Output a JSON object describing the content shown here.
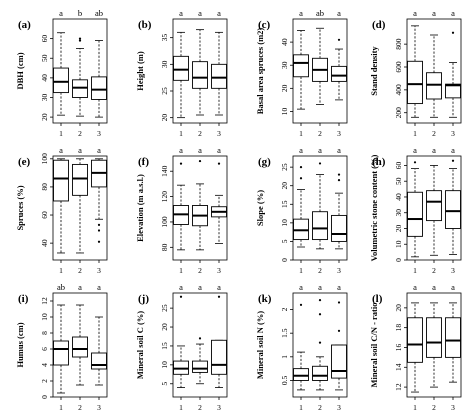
{
  "chart_data": [
    {
      "type": "boxplot",
      "panel_label": "(a)",
      "ylabel": "DBH (cm)",
      "categories": [
        "1",
        "2",
        "3"
      ],
      "significance": [
        "a",
        "b",
        "ab"
      ],
      "yticks": [
        20,
        30,
        40,
        50,
        60
      ],
      "ylim": [
        17,
        70
      ],
      "boxes": [
        {
          "whisker_low": 21,
          "q1": 32.5,
          "median": 38,
          "q3": 45,
          "whisker_high": 63,
          "outliers": []
        },
        {
          "whisker_low": 20.5,
          "q1": 30,
          "median": 35,
          "q3": 39,
          "whisker_high": 55,
          "outliers": [
            59,
            60
          ]
        },
        {
          "whisker_low": 20,
          "q1": 29,
          "median": 34,
          "q3": 40.5,
          "whisker_high": 59,
          "outliers": []
        }
      ]
    },
    {
      "type": "boxplot",
      "panel_label": "(b)",
      "ylabel": "Height (m)",
      "categories": [
        "1",
        "2",
        "3"
      ],
      "significance": [
        "a",
        "a",
        "a"
      ],
      "yticks": [
        20,
        25,
        30,
        35
      ],
      "ylim": [
        19,
        38.5
      ],
      "boxes": [
        {
          "whisker_low": 20,
          "q1": 27,
          "median": 29,
          "q3": 31.5,
          "whisker_high": 36,
          "outliers": []
        },
        {
          "whisker_low": 20.5,
          "q1": 25.5,
          "median": 27.5,
          "q3": 30.5,
          "whisker_high": 36.5,
          "outliers": []
        },
        {
          "whisker_low": 20.5,
          "q1": 25.5,
          "median": 27.5,
          "q3": 30,
          "whisker_high": 36,
          "outliers": []
        }
      ]
    },
    {
      "type": "boxplot",
      "panel_label": "(c)",
      "ylabel": "Basal area spruces (m2)",
      "categories": [
        "1",
        "2",
        "3"
      ],
      "significance": [
        "a",
        "ab",
        "a"
      ],
      "yticks": [
        10,
        20,
        30,
        40
      ],
      "ylim": [
        5,
        50
      ],
      "boxes": [
        {
          "whisker_low": 11,
          "q1": 25,
          "median": 31,
          "q3": 34.5,
          "whisker_high": 45,
          "outliers": []
        },
        {
          "whisker_low": 13,
          "q1": 23,
          "median": 28,
          "q3": 33,
          "whisker_high": 46,
          "outliers": []
        },
        {
          "whisker_low": 15,
          "q1": 23,
          "median": 25.5,
          "q3": 29.5,
          "whisker_high": 37,
          "outliers": [
            41
          ]
        }
      ]
    },
    {
      "type": "boxplot",
      "panel_label": "(d)",
      "ylabel": "Stand density",
      "categories": [
        "1",
        "2",
        "3"
      ],
      "significance": [
        "a",
        "a",
        "a"
      ],
      "yticks": [
        200,
        400,
        600,
        800
      ],
      "ylim": [
        110,
        1020
      ],
      "boxes": [
        {
          "whisker_low": 160,
          "q1": 280,
          "median": 450,
          "q3": 650,
          "whisker_high": 960,
          "outliers": []
        },
        {
          "whisker_low": 160,
          "q1": 320,
          "median": 445,
          "q3": 550,
          "whisker_high": 880,
          "outliers": []
        },
        {
          "whisker_low": 160,
          "q1": 330,
          "median": 440,
          "q3": 450,
          "whisker_high": 640,
          "outliers": [
            900
          ]
        }
      ]
    },
    {
      "type": "boxplot",
      "panel_label": "(e)",
      "ylabel": "Spruces (%)",
      "categories": [
        "1",
        "2",
        "3"
      ],
      "significance": [
        "a",
        "a",
        "a"
      ],
      "yticks": [
        40,
        60,
        80,
        100
      ],
      "ylim": [
        28,
        102
      ],
      "boxes": [
        {
          "whisker_low": 33,
          "q1": 70,
          "median": 86,
          "q3": 99,
          "whisker_high": 100,
          "outliers": []
        },
        {
          "whisker_low": 33,
          "q1": 74,
          "median": 86,
          "q3": 96,
          "whisker_high": 100,
          "outliers": []
        },
        {
          "whisker_low": 57,
          "q1": 80,
          "median": 90,
          "q3": 99,
          "whisker_high": 100,
          "outliers": [
            53,
            49,
            41
          ]
        }
      ]
    },
    {
      "type": "boxplot",
      "panel_label": "(f)",
      "ylabel": "Elevation (m a.s.l.)",
      "categories": [
        "1",
        "2",
        "3"
      ],
      "significance": [
        "a",
        "a",
        "a"
      ],
      "yticks": [
        80,
        100,
        120,
        140
      ],
      "ylim": [
        70,
        152
      ],
      "boxes": [
        {
          "whisker_low": 78,
          "q1": 98,
          "median": 106,
          "q3": 113,
          "whisker_high": 129,
          "outliers": [
            146
          ]
        },
        {
          "whisker_low": 78,
          "q1": 97,
          "median": 105,
          "q3": 113,
          "whisker_high": 130,
          "outliers": [
            148
          ]
        },
        {
          "whisker_low": 83,
          "q1": 104,
          "median": 108,
          "q3": 112,
          "whisker_high": 121,
          "outliers": [
            146
          ]
        }
      ]
    },
    {
      "type": "boxplot",
      "panel_label": "(g)",
      "ylabel": "Slope (%)",
      "categories": [
        "1",
        "2",
        "3"
      ],
      "significance": [
        "a",
        "a",
        "a"
      ],
      "yticks": [
        0,
        5,
        10,
        15,
        20,
        25
      ],
      "ylim": [
        0,
        28
      ],
      "boxes": [
        {
          "whisker_low": 3.5,
          "q1": 5.5,
          "median": 8,
          "q3": 11,
          "whisker_high": 19,
          "outliers": [
            22,
            25
          ]
        },
        {
          "whisker_low": 3,
          "q1": 5.5,
          "median": 8.5,
          "q3": 13,
          "whisker_high": 23,
          "outliers": [
            26
          ]
        },
        {
          "whisker_low": 3,
          "q1": 5,
          "median": 7,
          "q3": 12,
          "whisker_high": 18,
          "outliers": [
            21.5,
            23
          ]
        }
      ]
    },
    {
      "type": "boxplot",
      "panel_label": "(h)",
      "ylabel": "Volumetric stone content (%)",
      "categories": [
        "1",
        "2",
        "3"
      ],
      "significance": [
        "a",
        "a",
        "a"
      ],
      "yticks": [
        0,
        10,
        20,
        30,
        40,
        50,
        60
      ],
      "ylim": [
        0,
        66
      ],
      "boxes": [
        {
          "whisker_low": 2,
          "q1": 15,
          "median": 26,
          "q3": 43,
          "whisker_high": 58,
          "outliers": [
            62
          ]
        },
        {
          "whisker_low": 3,
          "q1": 25,
          "median": 37,
          "q3": 44,
          "whisker_high": 60,
          "outliers": []
        },
        {
          "whisker_low": 3.5,
          "q1": 20,
          "median": 31,
          "q3": 44,
          "whisker_high": 58,
          "outliers": [
            63
          ]
        }
      ]
    },
    {
      "type": "boxplot",
      "panel_label": "(i)",
      "ylabel": "Humus (cm)",
      "categories": [
        "1",
        "2",
        "3"
      ],
      "significance": [
        "ab",
        "a",
        "a"
      ],
      "yticks": [
        0,
        2,
        4,
        6,
        8,
        10,
        12
      ],
      "ylim": [
        0,
        13
      ],
      "boxes": [
        {
          "whisker_low": 0.5,
          "q1": 4,
          "median": 6,
          "q3": 7,
          "whisker_high": 11.5,
          "outliers": []
        },
        {
          "whisker_low": 1.5,
          "q1": 5,
          "median": 6,
          "q3": 7.5,
          "whisker_high": 11.5,
          "outliers": []
        },
        {
          "whisker_low": 1.5,
          "q1": 3.5,
          "median": 4,
          "q3": 5.5,
          "whisker_high": 10,
          "outliers": []
        }
      ]
    },
    {
      "type": "boxplot",
      "panel_label": "(j)",
      "ylabel": "Mineral soil C (%)",
      "categories": [
        "1",
        "2",
        "3"
      ],
      "significance": [
        "a",
        "a",
        "a"
      ],
      "yticks": [
        5,
        10,
        15,
        20,
        25
      ],
      "ylim": [
        1.5,
        29
      ],
      "boxes": [
        {
          "whisker_low": 4,
          "q1": 7.5,
          "median": 9,
          "q3": 11,
          "whisker_high": 15,
          "outliers": [
            28
          ]
        },
        {
          "whisker_low": 5,
          "q1": 8,
          "median": 9,
          "q3": 11,
          "whisker_high": 15.5,
          "outliers": [
            17
          ]
        },
        {
          "whisker_low": 4,
          "q1": 7.5,
          "median": 10,
          "q3": 16.5,
          "whisker_high": 16.5,
          "outliers": [
            28
          ]
        }
      ]
    },
    {
      "type": "boxplot",
      "panel_label": "(k)",
      "ylabel": "Mineral soil N (%)",
      "categories": [
        "1",
        "2",
        "3"
      ],
      "significance": [
        "a",
        "a",
        "a"
      ],
      "yticks": [
        0.5,
        1.0,
        1.5,
        2.0
      ],
      "ylim": [
        0.15,
        2.35
      ],
      "boxes": [
        {
          "whisker_low": 0.3,
          "q1": 0.5,
          "median": 0.6,
          "q3": 0.75,
          "whisker_high": 1.1,
          "outliers": [
            2.1
          ]
        },
        {
          "whisker_low": 0.3,
          "q1": 0.5,
          "median": 0.6,
          "q3": 0.8,
          "whisker_high": 1.0,
          "outliers": [
            1.3,
            1.9,
            2.2
          ]
        },
        {
          "whisker_low": 0.3,
          "q1": 0.55,
          "median": 0.7,
          "q3": 1.25,
          "whisker_high": 1.25,
          "outliers": [
            1.55,
            2.15
          ]
        }
      ]
    },
    {
      "type": "boxplot",
      "panel_label": "(l)",
      "ylabel": "Mineral soil C/N - ratio",
      "categories": [
        "1",
        "2",
        "3"
      ],
      "significance": [
        "a",
        "a",
        "a"
      ],
      "yticks": [
        12,
        14,
        16,
        18,
        20
      ],
      "ylim": [
        11,
        21.5
      ],
      "boxes": [
        {
          "whisker_low": 11.5,
          "q1": 14.5,
          "median": 16.3,
          "q3": 19,
          "whisker_high": 20.5,
          "outliers": []
        },
        {
          "whisker_low": 12,
          "q1": 15,
          "median": 16.5,
          "q3": 19,
          "whisker_high": 20.5,
          "outliers": []
        },
        {
          "whisker_low": 12.5,
          "q1": 15,
          "median": 16.7,
          "q3": 19,
          "whisker_high": 20.5,
          "outliers": []
        }
      ]
    }
  ]
}
